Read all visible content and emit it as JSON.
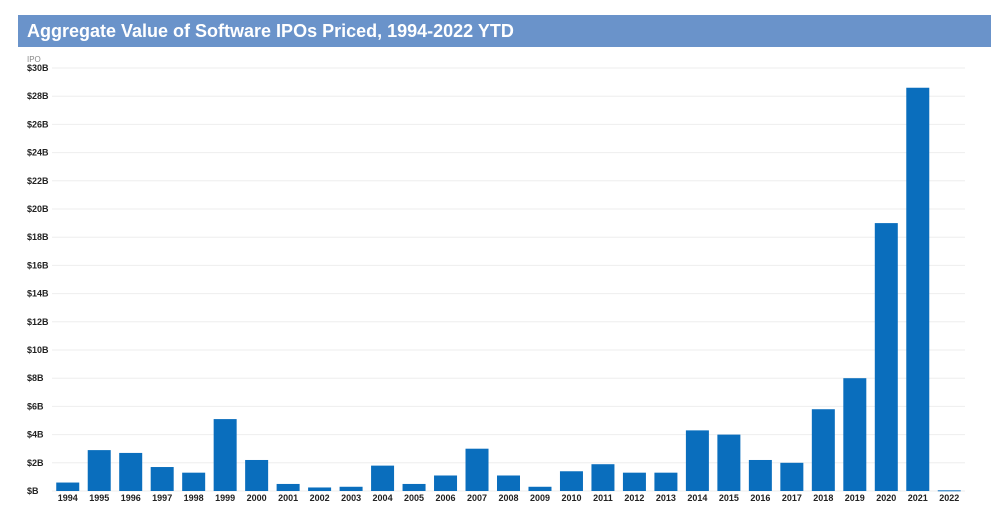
{
  "chart_data": {
    "type": "bar",
    "title": "Aggregate Value of Software IPOs Priced, 1994-2022 YTD",
    "ylabel": "IPO",
    "xlabel": "",
    "ylim": [
      0,
      30
    ],
    "ytick_values": [
      0,
      2,
      4,
      6,
      8,
      10,
      12,
      14,
      16,
      18,
      20,
      22,
      24,
      26,
      28,
      30
    ],
    "ytick_labels": [
      "$B",
      "$2B",
      "$4B",
      "$6B",
      "$8B",
      "$10B",
      "$12B",
      "$14B",
      "$16B",
      "$18B",
      "$20B",
      "$22B",
      "$24B",
      "$26B",
      "$28B",
      "$30B"
    ],
    "grid": true,
    "legend": "none",
    "bar_color": "#0a6ebd",
    "grid_color": "#eeeeee",
    "categories": [
      "1994",
      "1995",
      "1996",
      "1997",
      "1998",
      "1999",
      "2000",
      "2001",
      "2002",
      "2003",
      "2004",
      "2005",
      "2006",
      "2007",
      "2008",
      "2009",
      "2010",
      "2011",
      "2012",
      "2013",
      "2014",
      "2015",
      "2016",
      "2017",
      "2018",
      "2019",
      "2020",
      "2021",
      "2022"
    ],
    "values": [
      0.6,
      2.9,
      2.7,
      1.7,
      1.3,
      5.1,
      2.2,
      0.5,
      0.25,
      0.3,
      1.8,
      0.5,
      1.1,
      3.0,
      1.1,
      0.3,
      1.4,
      1.9,
      1.3,
      1.3,
      4.3,
      4.0,
      2.2,
      2.0,
      5.8,
      8.0,
      19.0,
      28.6,
      0.05
    ]
  }
}
